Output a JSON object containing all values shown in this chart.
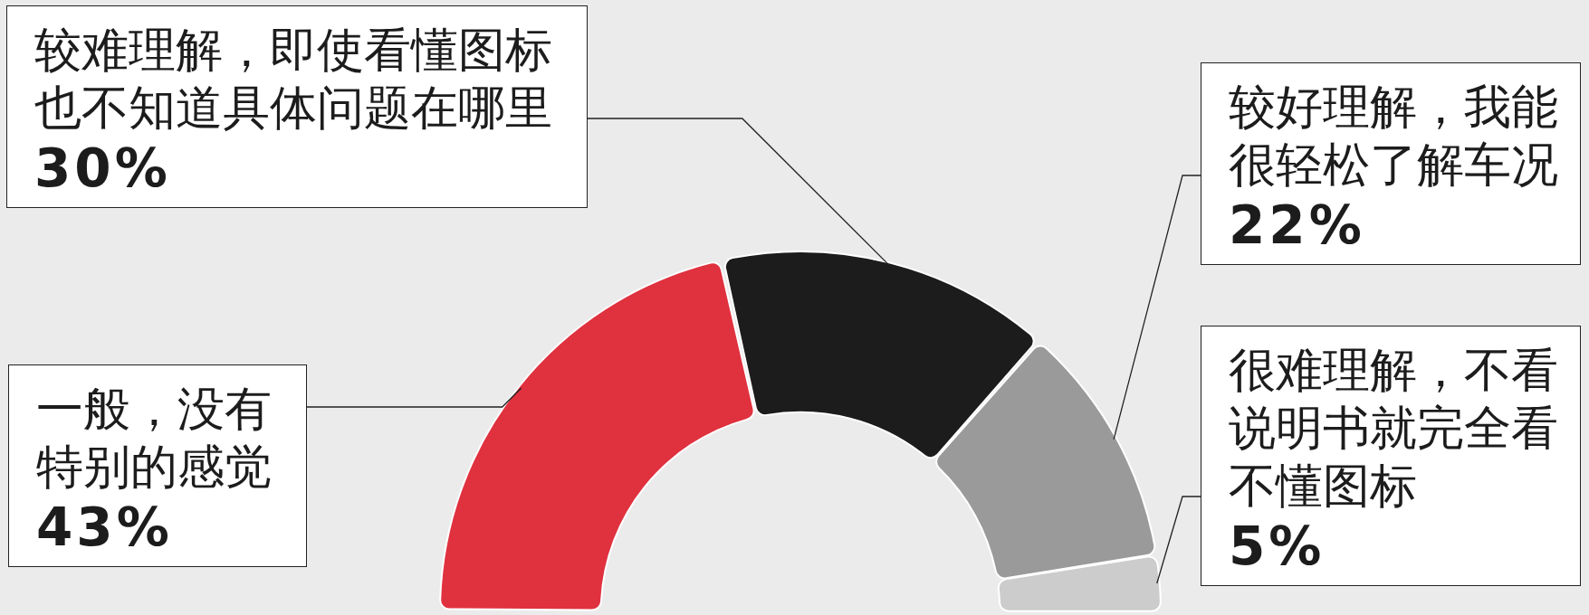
{
  "chart_data": {
    "type": "donut",
    "categories": [
      "一般，没有特别的感觉",
      "较难理解，即使看懂图标也不知道具体问题在哪里",
      "较好理解，我能很轻松了解车况",
      "很难理解，不看说明书就完全看不懂图标"
    ],
    "values": [
      43,
      30,
      22,
      5
    ],
    "colors": [
      "#e0313f",
      "#1c1c1c",
      "#9a9a9a",
      "#cccccc"
    ],
    "value_labels": [
      "43%",
      "30%",
      "22%",
      "5%"
    ],
    "legend": false
  }
}
